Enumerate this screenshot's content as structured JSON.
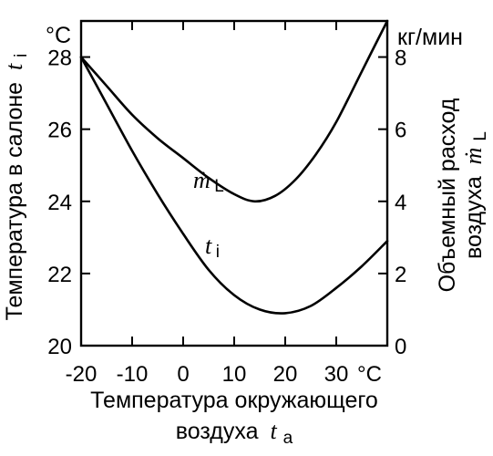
{
  "chart_data": {
    "type": "line",
    "x_axis": {
      "label_text": "Температура окружающего",
      "label_text_2": "воздуха",
      "label_symbol": "t",
      "label_subscript": "a",
      "unit": "°C",
      "range": [
        -20,
        40
      ],
      "ticks": [
        -20,
        -10,
        0,
        10,
        20,
        30
      ],
      "tick_labels": [
        "-20",
        "-10",
        "0",
        "10",
        "20",
        "30"
      ]
    },
    "y_left": {
      "label_text": "Температура в салоне",
      "label_symbol": "t",
      "label_subscript": "i",
      "unit": "°C",
      "range": [
        20,
        29
      ],
      "ticks": [
        20,
        22,
        24,
        26,
        28
      ],
      "tick_labels": [
        "20",
        "22",
        "24",
        "26",
        "28"
      ]
    },
    "y_right": {
      "label_text_1": "Объемный расход",
      "label_text_2": "воздуха",
      "label_symbol": "ṁ",
      "label_subscript": "L",
      "unit": "кг/мин",
      "range": [
        0,
        9
      ],
      "ticks": [
        0,
        2,
        4,
        6,
        8
      ],
      "tick_labels": [
        "0",
        "2",
        "4",
        "6",
        "8"
      ]
    },
    "series": [
      {
        "name_symbol": "ṁ",
        "name_subscript": "L",
        "axis": "right",
        "x": [
          -20,
          -15,
          -10,
          -5,
          0,
          5,
          10,
          14,
          18,
          22,
          26,
          30,
          35,
          40
        ],
        "y": [
          8.0,
          7.2,
          6.4,
          5.75,
          5.2,
          4.65,
          4.2,
          4.0,
          4.15,
          4.6,
          5.3,
          6.2,
          7.6,
          9.0
        ]
      },
      {
        "name_symbol": "t",
        "name_subscript": "i",
        "axis": "left",
        "x": [
          -20,
          -15,
          -10,
          -5,
          0,
          5,
          10,
          15,
          20,
          25,
          30,
          35,
          40
        ],
        "y": [
          28.0,
          26.7,
          25.4,
          24.2,
          23.1,
          22.1,
          21.4,
          21.0,
          20.9,
          21.1,
          21.6,
          22.2,
          22.9
        ]
      }
    ],
    "grid": false,
    "legend": "labels-on-curves"
  }
}
